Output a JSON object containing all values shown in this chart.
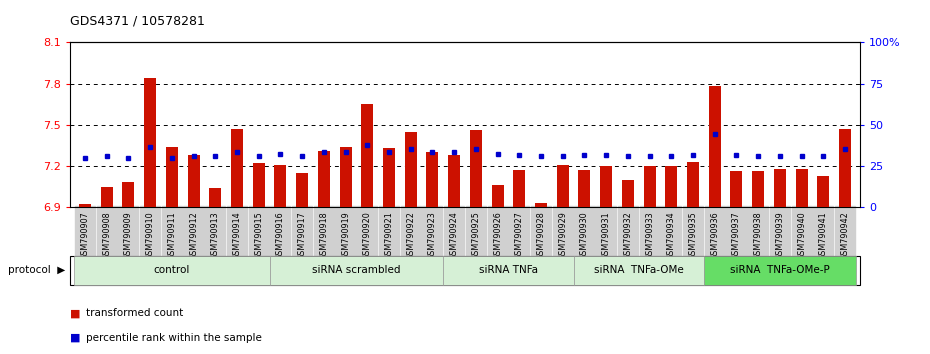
{
  "title": "GDS4371 / 10578281",
  "samples": [
    "GSM790907",
    "GSM790908",
    "GSM790909",
    "GSM790910",
    "GSM790911",
    "GSM790912",
    "GSM790913",
    "GSM790914",
    "GSM790915",
    "GSM790916",
    "GSM790917",
    "GSM790918",
    "GSM790919",
    "GSM790920",
    "GSM790921",
    "GSM790922",
    "GSM790923",
    "GSM790924",
    "GSM790925",
    "GSM790926",
    "GSM790927",
    "GSM790928",
    "GSM790929",
    "GSM790930",
    "GSM790931",
    "GSM790932",
    "GSM790933",
    "GSM790934",
    "GSM790935",
    "GSM790936",
    "GSM790937",
    "GSM790938",
    "GSM790939",
    "GSM790940",
    "GSM790941",
    "GSM790942"
  ],
  "red_values": [
    6.92,
    7.05,
    7.08,
    7.84,
    7.34,
    7.28,
    7.04,
    7.47,
    7.22,
    7.21,
    7.15,
    7.31,
    7.34,
    7.65,
    7.33,
    7.45,
    7.3,
    7.28,
    7.46,
    7.06,
    7.17,
    6.93,
    7.21,
    7.17,
    7.2,
    7.1,
    7.2,
    7.2,
    7.23,
    7.78,
    7.16,
    7.16,
    7.18,
    7.18,
    7.13,
    7.47
  ],
  "blue_values": [
    7.26,
    7.27,
    7.26,
    7.34,
    7.26,
    7.27,
    7.27,
    7.3,
    7.27,
    7.29,
    7.27,
    7.3,
    7.3,
    7.35,
    7.3,
    7.32,
    7.3,
    7.3,
    7.32,
    7.29,
    7.28,
    7.27,
    7.27,
    7.28,
    7.28,
    7.27,
    7.27,
    7.27,
    7.28,
    7.43,
    7.28,
    7.27,
    7.27,
    7.27,
    7.27,
    7.32
  ],
  "groups": [
    {
      "label": "control",
      "start": 0,
      "end": 8,
      "color": "#d6f0d6"
    },
    {
      "label": "siRNA scrambled",
      "start": 9,
      "end": 16,
      "color": "#d6f0d6"
    },
    {
      "label": "siRNA TNFa",
      "start": 17,
      "end": 22,
      "color": "#d6f0d6"
    },
    {
      "label": "siRNA  TNFa-OMe",
      "start": 23,
      "end": 28,
      "color": "#d6f0d6"
    },
    {
      "label": "siRNA  TNFa-OMe-P",
      "start": 29,
      "end": 35,
      "color": "#66dd66"
    }
  ],
  "ylim_left": [
    6.9,
    8.1
  ],
  "ylim_right": [
    0,
    100
  ],
  "yticks_left": [
    6.9,
    7.2,
    7.5,
    7.8,
    8.1
  ],
  "yticks_right": [
    0,
    25,
    50,
    75,
    100
  ],
  "ytick_labels_right": [
    "0",
    "25",
    "50",
    "75",
    "100%"
  ],
  "bar_color": "#cc1100",
  "dot_color": "#0000cc",
  "background_color": "#ffffff",
  "xtick_bg": "#d0d0d0"
}
